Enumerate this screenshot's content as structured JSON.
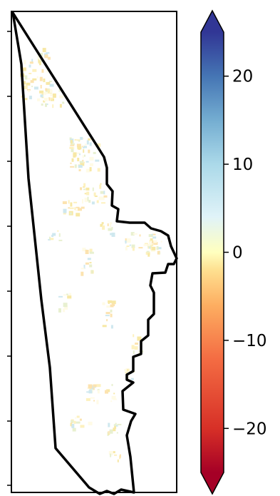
{
  "map": {
    "boundary_color": "#000000",
    "frame_color": "#000000",
    "pixel_palette": [
      "#fffbe6",
      "#fdf1bf",
      "#f7e8a6",
      "#e8f0d0",
      "#cfe8ef",
      "#fce3b0"
    ]
  },
  "colorbar": {
    "colormap": "RdYlBu",
    "value_range": [
      -25,
      25
    ],
    "extend": "both",
    "stops": [
      {
        "value": -25,
        "color": "#a50026"
      },
      {
        "value": -20,
        "color": "#d73027"
      },
      {
        "value": -12,
        "color": "#f46d43"
      },
      {
        "value": -6,
        "color": "#fdae61"
      },
      {
        "value": -2,
        "color": "#fee090"
      },
      {
        "value": 0,
        "color": "#ffffbf"
      },
      {
        "value": 4,
        "color": "#e0f3f8"
      },
      {
        "value": 10,
        "color": "#abd9e9"
      },
      {
        "value": 15,
        "color": "#74add1"
      },
      {
        "value": 20,
        "color": "#4575b4"
      },
      {
        "value": 25,
        "color": "#313695"
      }
    ],
    "ticks": [
      {
        "value": 20,
        "label": "20"
      },
      {
        "value": 10,
        "label": "10"
      },
      {
        "value": 0,
        "label": "0"
      },
      {
        "value": -10,
        "label": "−10"
      },
      {
        "value": -20,
        "label": "−20"
      }
    ]
  }
}
